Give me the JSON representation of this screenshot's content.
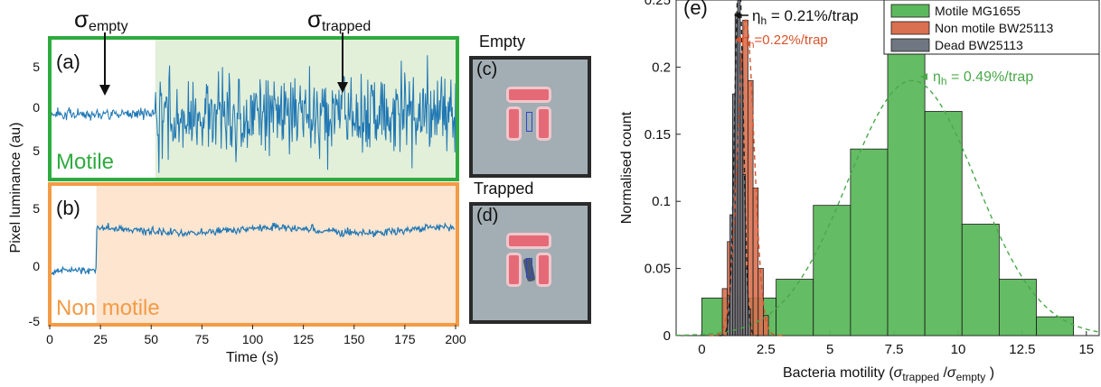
{
  "panel_a": {
    "label": "(a)",
    "tag": "Motile",
    "sigma_empty_main": "σ",
    "sigma_empty_sub": "empty",
    "sigma_trapped_main": "σ",
    "sigma_trapped_sub": "trapped",
    "border_color": "#2eab3f",
    "fill_color": "#e2efd9",
    "trace_color": "#1f77b4"
  },
  "panel_b": {
    "label": "(b)",
    "tag": "Non motile",
    "border_color": "#f39b45",
    "fill_color": "#fde5d0",
    "trace_color": "#1f77b4"
  },
  "left_axes": {
    "ylabel": "Pixel luminance (au)",
    "xlabel": "Time (s)",
    "yticks_a": [
      "5",
      "0",
      "5"
    ],
    "yticks_b": [
      "5",
      "0",
      "-5"
    ],
    "xticks": [
      "0",
      "25",
      "50",
      "75",
      "100",
      "125",
      "150",
      "175",
      "200"
    ]
  },
  "thumbnails": {
    "c": {
      "title": "Empty",
      "label": "(c)"
    },
    "d": {
      "title": "Trapped",
      "label": "(d)"
    }
  },
  "chart_data": [
    {
      "type": "line",
      "panel": "(a)",
      "xlabel": "Time (s)",
      "ylabel": "Pixel luminance (au)",
      "xlim": [
        0,
        200
      ],
      "ylim": [
        -6.5,
        7.5
      ],
      "segments": [
        {
          "x_range": [
            0,
            52
          ],
          "mean": 0,
          "std": 0.3
        },
        {
          "x_range": [
            52,
            200
          ],
          "mean": 0,
          "std": 2.3
        }
      ]
    },
    {
      "type": "line",
      "panel": "(b)",
      "xlabel": "Time (s)",
      "ylabel": "Pixel luminance (au)",
      "xlim": [
        0,
        200
      ],
      "ylim": [
        -5,
        8
      ],
      "segments": [
        {
          "x_range": [
            0,
            23
          ],
          "mean": 0,
          "std": 0.3
        },
        {
          "x_range": [
            23,
            200
          ],
          "mean": 3.8,
          "std": 0.3
        }
      ]
    },
    {
      "type": "bar",
      "panel": "(e)",
      "label": "(e)",
      "xlabel": "Bacteria motility (",
      "xlabel_sigma": "σ",
      "xlabel_trapped": "trapped",
      "xlabel_slash": "/",
      "xlabel_empty": "empty",
      "xlabel_close": ")",
      "ylabel": "Normalised count",
      "xlim": [
        -1,
        15.5
      ],
      "ylim": [
        0,
        0.25
      ],
      "xticks": [
        "0",
        "2.5",
        "5",
        "7.5",
        "10",
        "12.5",
        "15"
      ],
      "yticks": [
        "0",
        "0.05",
        "0.1",
        "0.15",
        "0.2",
        "0.25"
      ],
      "legend_position": "top-right",
      "series": [
        {
          "name": "Motile MG1655",
          "color": "#5cb85c",
          "bin_edges": [
            0,
            1.45,
            2.9,
            4.35,
            5.8,
            7.25,
            8.7,
            10.15,
            11.6,
            13.05,
            14.5
          ],
          "values": [
            0.028,
            0.028,
            0.042,
            0.097,
            0.139,
            0.236,
            0.167,
            0.083,
            0.042,
            0.014
          ],
          "fit_mean": 8.2,
          "fit_peak": 0.19,
          "fit_sigma": 2.5,
          "annotation": "η",
          "annotation_sub": "h",
          "annotation_text": " = 0.49%/trap",
          "annotation_color": "#4aa84a"
        },
        {
          "name": "Non motile BW25113",
          "color": "#d9704f",
          "bin_edges": [
            0.8,
            1.0,
            1.2,
            1.4,
            1.6,
            1.8,
            2.0,
            2.2,
            2.4,
            2.6
          ],
          "values": [
            0.035,
            0.07,
            0.14,
            0.21,
            0.235,
            0.19,
            0.11,
            0.05,
            0.015
          ],
          "fit_mean": 1.72,
          "fit_peak": 0.235,
          "fit_sigma": 0.32,
          "annotation": "η",
          "annotation_sub": "h",
          "annotation_text": "=0.22%/trap",
          "annotation_color": "#d9532c"
        },
        {
          "name": "Dead BW25113",
          "color": "#707782",
          "bin_edges": [
            1.0,
            1.1,
            1.2,
            1.3,
            1.4,
            1.5,
            1.6,
            1.7,
            1.8,
            1.9
          ],
          "values": [
            0.03,
            0.09,
            0.18,
            0.24,
            0.26,
            0.2,
            0.12,
            0.05,
            0.02
          ],
          "fit_mean": 1.45,
          "fit_peak": 0.27,
          "fit_sigma": 0.17,
          "annotation": "η",
          "annotation_sub": "h",
          "annotation_text": " = 0.21%/trap",
          "annotation_color": "#111111"
        }
      ]
    }
  ]
}
